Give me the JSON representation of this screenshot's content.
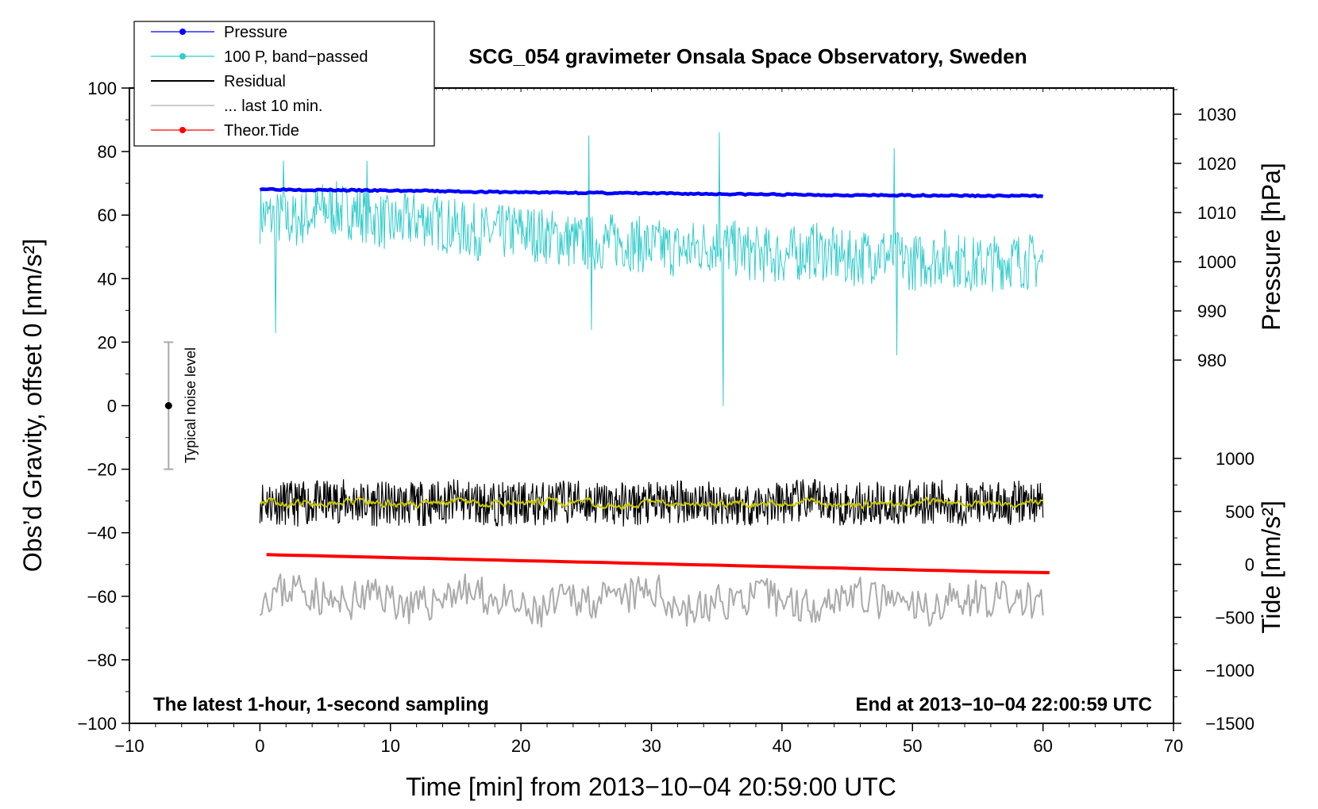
{
  "chart_data": {
    "type": "line",
    "title": "SCG_054 gravimeter Onsala Space Observatory, Sweden",
    "xlabel": "Time [min] from 2013−10−04 20:59:00 UTC",
    "ylabel_left": "Obs’d Gravity, offset 0 [nm/s²]",
    "ylabel_right_top": "Pressure [hPa]",
    "ylabel_right_bottom": "Tide [nm/s²]",
    "xlim": [
      -10,
      70
    ],
    "ylim_left": [
      -100,
      100
    ],
    "ylim_pressure": [
      975,
      1035
    ],
    "ylim_tide": [
      -1500,
      1000
    ],
    "x_ticks": [
      "−10",
      "0",
      "10",
      "20",
      "30",
      "40",
      "50",
      "60",
      "70"
    ],
    "y_left_ticks": [
      "100",
      "80",
      "60",
      "40",
      "20",
      "0",
      "−20",
      "−40",
      "−60",
      "−80",
      "−100"
    ],
    "pressure_ticks": [
      "1030",
      "1020",
      "1010",
      "1000",
      "990",
      "980"
    ],
    "tide_ticks": [
      "1000",
      "500",
      "0",
      "−500",
      "−1000",
      "−1500"
    ],
    "note_left": "The latest 1-hour, 1-second sampling",
    "note_right": "End at 2013−10−04 22:00:59 UTC",
    "noise_label": "Typical noise level",
    "noise_bar": {
      "x": -7,
      "center": 0,
      "low": -20,
      "high": 20
    },
    "legend": [
      {
        "name": "Pressure",
        "color": "#0000ff",
        "marker": true
      },
      {
        "name": "100 P, band−passed",
        "color": "#33cccc",
        "marker": true
      },
      {
        "name": "Residual",
        "color": "#000000",
        "marker": false
      },
      {
        "name": "... last 10 min.",
        "color": "#aaaaaa",
        "marker": false
      },
      {
        "name": "Theor.Tide",
        "color": "#ff0000",
        "marker": true
      }
    ],
    "series": [
      {
        "name": "Pressure",
        "axis": "pressure",
        "x_start": 0,
        "x_end": 60,
        "values": [
          1014.8,
          1014.6,
          1014.5,
          1014.4,
          1014.2,
          1014.1,
          1014.0,
          1013.9,
          1013.8,
          1013.7,
          1013.6,
          1013.5,
          1013.5,
          1013.4,
          1013.4
        ]
      },
      {
        "name": "100 P, band-passed",
        "axis": "left",
        "x_start": 0,
        "x_end": 60,
        "values": [
          60,
          58,
          62,
          61,
          57,
          59,
          56,
          54,
          55,
          53,
          51,
          52,
          50,
          49,
          51,
          48,
          47,
          49,
          46,
          48,
          45,
          47,
          44,
          46,
          45
        ],
        "spikes": [
          [
            1.2,
            23
          ],
          [
            1.8,
            77
          ],
          [
            8.2,
            77
          ],
          [
            25.2,
            85
          ],
          [
            25.4,
            24
          ],
          [
            35.2,
            86
          ],
          [
            35.5,
            0
          ],
          [
            48.6,
            81
          ],
          [
            48.8,
            16
          ]
        ]
      },
      {
        "name": "Residual",
        "axis": "left",
        "x_start": 0,
        "x_end": 60,
        "values": [
          -30,
          -31,
          -30,
          -31,
          -31,
          -30,
          -31,
          -31,
          -30,
          -31,
          -31,
          -30,
          -31,
          -31,
          -30,
          -31,
          -31,
          -30,
          -31,
          -31,
          -30
        ]
      },
      {
        "name": "Residual (smoothed)",
        "axis": "left",
        "color": "#c8c800",
        "x_start": 0,
        "x_end": 60,
        "values": [
          -30,
          -31,
          -30,
          -31,
          -31,
          -30,
          -31,
          -31,
          -30,
          -31,
          -31,
          -30,
          -31,
          -31,
          -30,
          -31,
          -31,
          -30,
          -31,
          -31,
          -30
        ]
      },
      {
        "name": "... last 10 min.",
        "axis": "left",
        "x_start": 0,
        "x_end": 60,
        "values": [
          -60,
          -57,
          -63,
          -59,
          -64,
          -58,
          -61,
          -66,
          -60,
          -62,
          -58,
          -65,
          -61,
          -60,
          -63,
          -59,
          -62,
          -64,
          -60,
          -61,
          -62
        ]
      },
      {
        "name": "Theor.Tide",
        "axis": "tide",
        "x_start": 0.5,
        "x_end": 60.5,
        "values": [
          92,
          80,
          67,
          55,
          42,
          30,
          18,
          5,
          -7,
          -20,
          -32,
          -45,
          -57,
          -70,
          -78
        ]
      }
    ]
  }
}
